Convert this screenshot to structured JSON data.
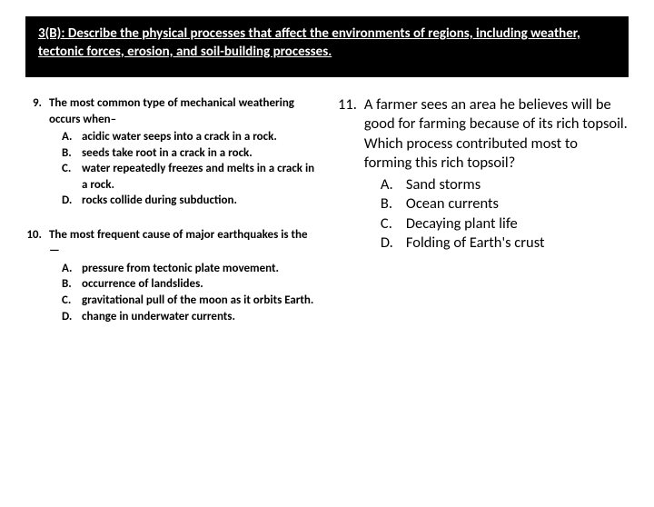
{
  "header": {
    "text": "3(B): Describe the physical processes that affect the environments of regions, including weather, tectonic forces, erosion, and soil-building processes."
  },
  "q9": {
    "num": "9.",
    "stem": "The most common type of mechanical weathering occurs when–",
    "a_letter": "A.",
    "a_text": "acidic water seeps into a crack in a rock.",
    "b_letter": "B.",
    "b_text": "seeds take root in a crack in a rock.",
    "c_letter": "C.",
    "c_text": "water repeatedly freezes and melts in a crack in a rock.",
    "d_letter": "D.",
    "d_text": "rocks collide during subduction."
  },
  "q10": {
    "num": "10.",
    "stem": "The most frequent cause of major earthquakes is the—",
    "a_letter": "A.",
    "a_text": "pressure from tectonic plate movement.",
    "b_letter": "B.",
    "b_text": "occurrence of landslides.",
    "c_letter": "C.",
    "c_text": "gravitational pull of the moon as it orbits Earth.",
    "d_letter": "D.",
    "d_text": "change in underwater currents."
  },
  "q11": {
    "num": "11.",
    "stem": "A farmer sees an area he believes will be good for farming because of its rich topsoil. Which process contributed most to forming this rich topsoil?",
    "a_letter": "A.",
    "a_text": "Sand storms",
    "b_letter": "B.",
    "b_text": "Ocean currents",
    "c_letter": "C.",
    "c_text": "Decaying plant life",
    "d_letter": "D.",
    "d_text": "Folding of Earth's crust"
  }
}
